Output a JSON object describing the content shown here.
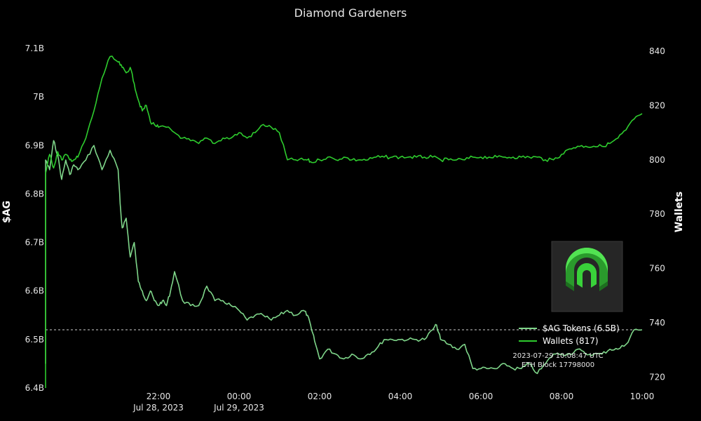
{
  "chart_data": {
    "type": "line",
    "title": "Diamond Gardeners",
    "y_left_label": "$AG",
    "y_right_label": "Wallets",
    "y_left_range": [
      6.4,
      7.1
    ],
    "y_left_ticks": [
      {
        "value": 6.4,
        "label": "6.4B"
      },
      {
        "value": 6.5,
        "label": "6.5B"
      },
      {
        "value": 6.6,
        "label": "6.6B"
      },
      {
        "value": 6.7,
        "label": "6.7B"
      },
      {
        "value": 6.8,
        "label": "6.8B"
      },
      {
        "value": 6.9,
        "label": "6.9B"
      },
      {
        "value": 7.0,
        "label": "7B"
      },
      {
        "value": 7.1,
        "label": "7.1B"
      }
    ],
    "y_right_range": [
      716,
      841
    ],
    "y_right_ticks": [
      720,
      740,
      760,
      780,
      800,
      820,
      840
    ],
    "x_range_hours": [
      19.2,
      34.0
    ],
    "x_ticks": [
      {
        "hour": 22,
        "line1": "22:00",
        "line2": "Jul 28, 2023"
      },
      {
        "hour": 24,
        "line1": "00:00",
        "line2": "Jul 29, 2023"
      },
      {
        "hour": 26,
        "line1": "02:00",
        "line2": ""
      },
      {
        "hour": 28,
        "line1": "04:00",
        "line2": ""
      },
      {
        "hour": 30,
        "line1": "06:00",
        "line2": ""
      },
      {
        "hour": 32,
        "line1": "08:00",
        "line2": ""
      },
      {
        "hour": 34,
        "line1": "10:00",
        "line2": ""
      }
    ],
    "reference_line": {
      "value": 6.52,
      "axis": "left",
      "style": "dashed"
    },
    "series": [
      {
        "name": "$AG Tokens (6.5B)",
        "axis": "left",
        "color": "#7fd68a",
        "x": [
          19.0,
          19.03,
          19.08,
          19.1,
          19.15,
          19.2,
          19.3,
          19.4,
          19.5,
          19.6,
          19.7,
          19.8,
          19.9,
          20.0,
          20.2,
          20.4,
          20.6,
          20.8,
          21.0,
          21.05,
          21.1,
          21.2,
          21.3,
          21.4,
          21.5,
          21.6,
          21.7,
          21.8,
          21.9,
          22.0,
          22.1,
          22.2,
          22.3,
          22.4,
          22.6,
          22.8,
          23.0,
          23.2,
          23.4,
          23.6,
          23.8,
          24.0,
          24.2,
          24.4,
          24.6,
          24.8,
          25.0,
          25.2,
          25.4,
          25.6,
          25.7,
          25.8,
          25.9,
          26.0,
          26.2,
          26.4,
          26.6,
          26.8,
          27.0,
          27.2,
          27.4,
          27.6,
          27.8,
          28.0,
          28.2,
          28.4,
          28.6,
          28.8,
          28.9,
          29.0,
          29.2,
          29.4,
          29.6,
          29.8,
          30.0,
          30.2,
          30.4,
          30.6,
          30.8,
          31.0,
          31.2,
          31.4,
          31.6,
          31.8,
          32.0,
          32.2,
          32.4,
          32.6,
          32.8,
          33.0,
          33.2,
          33.4,
          33.6,
          33.8,
          34.0
        ],
        "values": [
          6.45,
          6.55,
          6.7,
          6.78,
          6.85,
          6.87,
          6.85,
          6.91,
          6.88,
          6.83,
          6.87,
          6.84,
          6.86,
          6.85,
          6.87,
          6.9,
          6.85,
          6.89,
          6.85,
          6.78,
          6.73,
          6.75,
          6.67,
          6.7,
          6.62,
          6.6,
          6.58,
          6.6,
          6.58,
          6.57,
          6.58,
          6.57,
          6.6,
          6.64,
          6.58,
          6.57,
          6.57,
          6.61,
          6.58,
          6.58,
          6.57,
          6.56,
          6.54,
          6.55,
          6.55,
          6.54,
          6.55,
          6.56,
          6.55,
          6.56,
          6.55,
          6.52,
          6.49,
          6.46,
          6.48,
          6.47,
          6.46,
          6.47,
          6.46,
          6.47,
          6.48,
          6.5,
          6.5,
          6.5,
          6.5,
          6.5,
          6.5,
          6.52,
          6.53,
          6.5,
          6.49,
          6.48,
          6.49,
          6.44,
          6.44,
          6.44,
          6.44,
          6.45,
          6.44,
          6.44,
          6.45,
          6.43,
          6.45,
          6.47,
          6.47,
          6.47,
          6.48,
          6.47,
          6.47,
          6.47,
          6.48,
          6.48,
          6.49,
          6.52,
          6.52
        ]
      },
      {
        "name": "Wallets (817)",
        "axis": "right",
        "color": "#2ecc2e",
        "x": [
          19.0,
          19.1,
          19.2,
          19.3,
          19.4,
          19.5,
          19.6,
          19.7,
          19.8,
          19.9,
          20.0,
          20.2,
          20.4,
          20.6,
          20.8,
          21.0,
          21.1,
          21.2,
          21.3,
          21.4,
          21.5,
          21.6,
          21.7,
          21.8,
          21.9,
          22.0,
          22.2,
          22.4,
          22.6,
          22.8,
          23.0,
          23.2,
          23.4,
          23.6,
          23.8,
          24.0,
          24.2,
          24.4,
          24.6,
          24.8,
          25.0,
          25.2,
          25.4,
          25.6,
          25.7,
          25.8,
          26.0,
          26.2,
          26.4,
          26.6,
          26.8,
          27.0,
          27.2,
          27.4,
          27.6,
          27.8,
          28.0,
          28.2,
          28.4,
          28.6,
          28.8,
          29.0,
          29.2,
          29.4,
          29.6,
          29.8,
          30.0,
          30.2,
          30.4,
          30.6,
          30.8,
          31.0,
          31.2,
          31.4,
          31.6,
          31.8,
          32.0,
          32.2,
          32.4,
          32.6,
          32.8,
          33.0,
          33.2,
          33.4,
          33.6,
          33.8,
          34.0
        ],
        "values": [
          716,
          780,
          795,
          802,
          797,
          803,
          800,
          802,
          800,
          800,
          801,
          808,
          818,
          830,
          838,
          836,
          834,
          832,
          834,
          828,
          822,
          818,
          820,
          814,
          813,
          812,
          812,
          810,
          808,
          807,
          806,
          808,
          806,
          808,
          808,
          810,
          808,
          810,
          813,
          812,
          810,
          800,
          800,
          800,
          800,
          799,
          800,
          801,
          800,
          801,
          800,
          800,
          800,
          801,
          801,
          801,
          801,
          801,
          801,
          801,
          801,
          800,
          800,
          800,
          800,
          801,
          801,
          801,
          801,
          801,
          801,
          801,
          801,
          801,
          800,
          800,
          802,
          804,
          805,
          805,
          805,
          805,
          806,
          808,
          811,
          815,
          817
        ]
      }
    ],
    "legend": {
      "position": "lower-right",
      "entries": [
        "$AG Tokens (6.5B)",
        "Wallets (817)"
      ]
    },
    "annotation": {
      "line1": "2023-07-29 10:08:47 UTC",
      "line2": "ETH Block 17798000"
    },
    "logo": {
      "name": "diamond-gardeners-logo-icon",
      "color": "#39d13a"
    }
  }
}
